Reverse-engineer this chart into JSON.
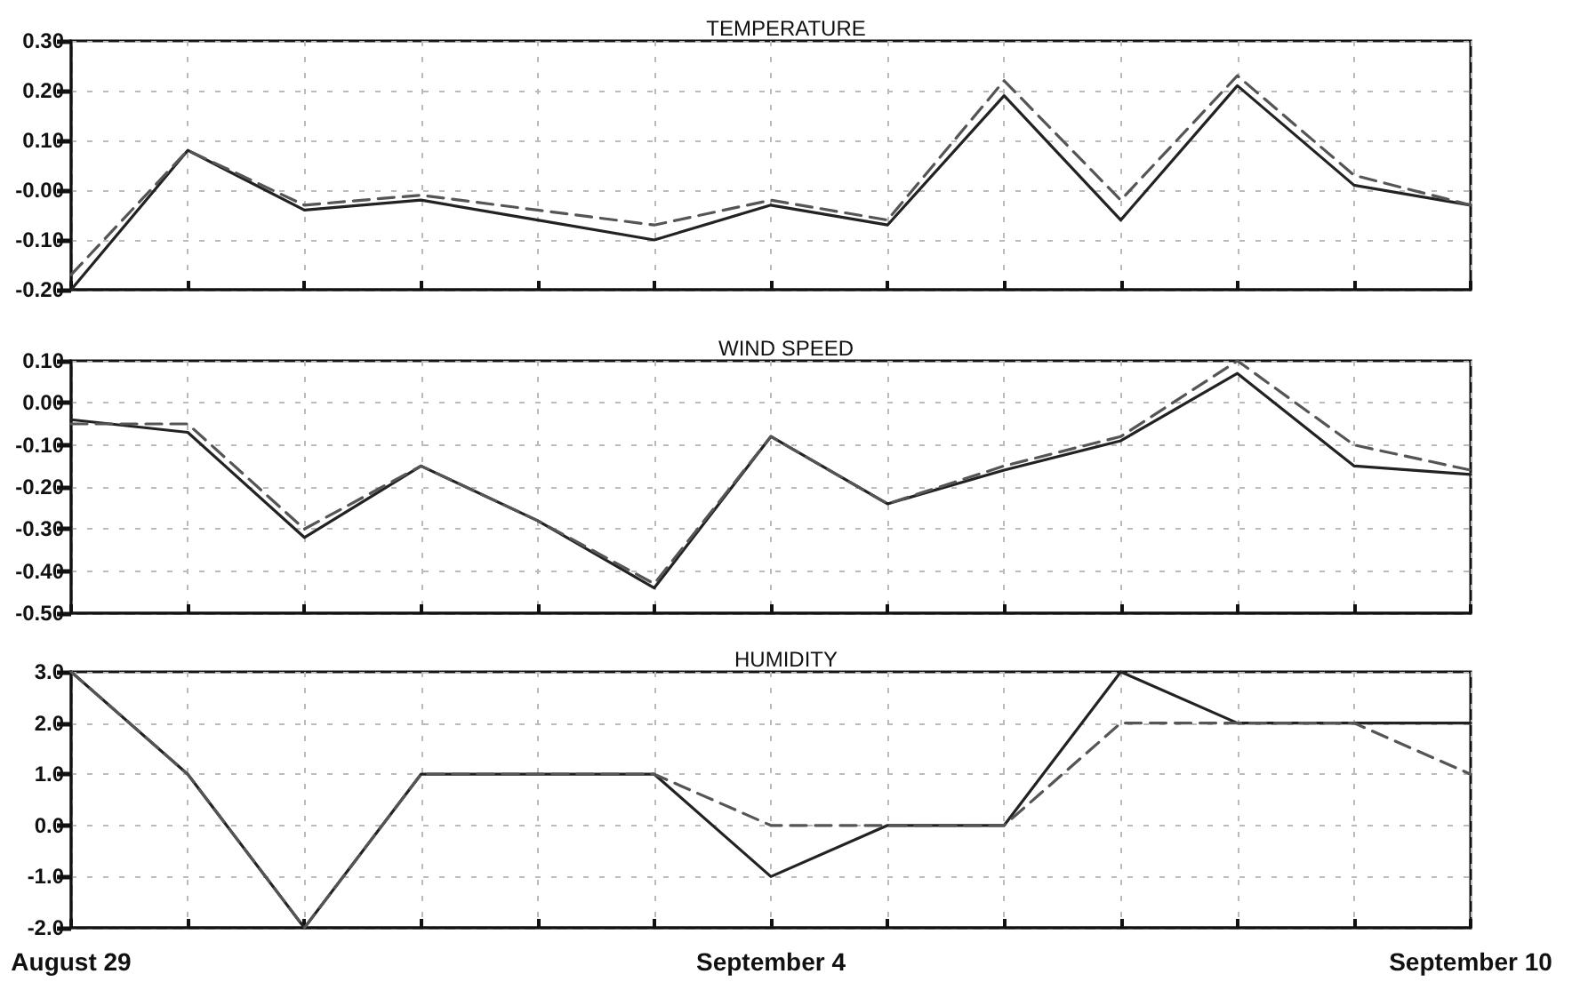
{
  "chart_data": [
    {
      "type": "line",
      "title": "TEMPERATURE",
      "ylim": [
        -0.2,
        0.3
      ],
      "yticks": [
        {
          "value": -0.2,
          "label": "-0.20"
        },
        {
          "value": -0.1,
          "label": "-0.10"
        },
        {
          "value": 0,
          "label": "-0.00"
        },
        {
          "value": 0.1,
          "label": "0.10"
        },
        {
          "value": 0.2,
          "label": "0.20"
        },
        {
          "value": 0.3,
          "label": "0.30"
        }
      ],
      "grid": true,
      "marker": "none",
      "tick_labels": "y",
      "series": [
        {
          "color": "#222222",
          "line_style": "solid",
          "values": [
            -0.2,
            0.08,
            -0.04,
            -0.02,
            -0.06,
            -0.1,
            -0.03,
            -0.07,
            0.19,
            -0.06,
            0.21,
            0.01,
            -0.03
          ]
        },
        {
          "color": "#555555",
          "line_style": "dashed",
          "values": [
            -0.17,
            0.08,
            -0.03,
            -0.01,
            -0.04,
            -0.07,
            -0.02,
            -0.06,
            0.22,
            -0.02,
            0.23,
            0.03,
            -0.03
          ]
        }
      ]
    },
    {
      "type": "line",
      "title": "WIND SPEED",
      "ylim": [
        -0.5,
        0.1
      ],
      "yticks": [
        {
          "value": -0.5,
          "label": "-0.50"
        },
        {
          "value": -0.4,
          "label": "-0.40"
        },
        {
          "value": -0.3,
          "label": "-0.30"
        },
        {
          "value": -0.2,
          "label": "-0.20"
        },
        {
          "value": -0.1,
          "label": "-0.10"
        },
        {
          "value": 0,
          "label": "0.00"
        },
        {
          "value": 0.1,
          "label": "0.10"
        }
      ],
      "grid": true,
      "marker": "none",
      "tick_labels": "y",
      "series": [
        {
          "color": "#222222",
          "line_style": "solid",
          "values": [
            -0.04,
            -0.07,
            -0.32,
            -0.15,
            -0.28,
            -0.44,
            -0.08,
            -0.24,
            -0.16,
            -0.09,
            0.07,
            -0.15,
            -0.17
          ]
        },
        {
          "color": "#555555",
          "line_style": "dashed",
          "values": [
            -0.05,
            -0.05,
            -0.3,
            -0.15,
            -0.28,
            -0.43,
            -0.08,
            -0.24,
            -0.15,
            -0.08,
            0.1,
            -0.1,
            -0.16
          ]
        }
      ]
    },
    {
      "type": "line",
      "title": "HUMIDITY",
      "categories": [
        "August 29",
        null,
        null,
        null,
        null,
        null,
        "September 4",
        null,
        null,
        null,
        null,
        null,
        "September 10"
      ],
      "ylim": [
        -2,
        3
      ],
      "yticks": [
        {
          "value": -2,
          "label": "-2.0"
        },
        {
          "value": -1,
          "label": "-1.0"
        },
        {
          "value": 0,
          "label": "0.0"
        },
        {
          "value": 1,
          "label": "1.0"
        },
        {
          "value": 2,
          "label": "2.0"
        },
        {
          "value": 3,
          "label": "3.0"
        }
      ],
      "grid": true,
      "marker": "none",
      "series": [
        {
          "color": "#222222",
          "line_style": "solid",
          "values": [
            3,
            1,
            -2,
            1,
            1,
            1,
            -1,
            0,
            0,
            3,
            2,
            2,
            2
          ]
        },
        {
          "color": "#555555",
          "line_style": "dashed",
          "values": [
            3,
            1,
            -2,
            1,
            1,
            1,
            0,
            0,
            0,
            2,
            2,
            2,
            1
          ]
        }
      ]
    }
  ]
}
